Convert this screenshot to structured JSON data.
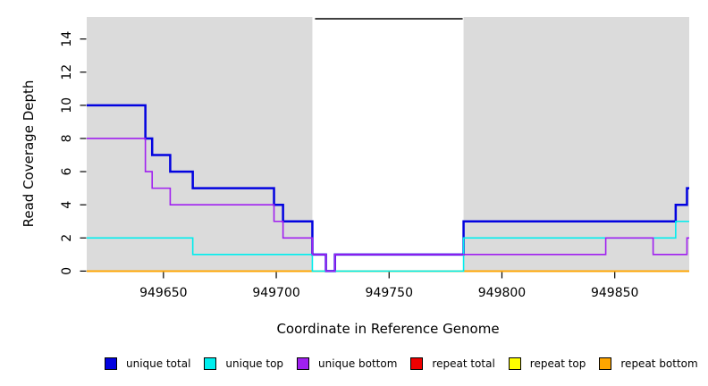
{
  "chart_data": {
    "type": "line",
    "subtype": "step-coverage-plot",
    "title": "",
    "xlabel": "Coordinate in Reference Genome",
    "ylabel": "Read Coverage Depth",
    "x_range": [
      949616,
      949883
    ],
    "y_range": [
      0,
      15.3
    ],
    "x_ticks": [
      949650,
      949700,
      949750,
      949800,
      949850
    ],
    "y_ticks": [
      0,
      2,
      4,
      6,
      8,
      10,
      12,
      14
    ],
    "grid": false,
    "plot_bg_color": "#DBDBDB",
    "axis_color": "#000000",
    "gap_region": {
      "start": 949716,
      "end": 949783,
      "fill": "#FFFFFF",
      "top_border_color": "#000000"
    },
    "legend_position": "bottom",
    "series": [
      {
        "name": "unique total",
        "color": "#0202E0",
        "width": 2.5,
        "steps": [
          [
            949616,
            10
          ],
          [
            949642,
            8
          ],
          [
            949645,
            7
          ],
          [
            949653,
            6
          ],
          [
            949663,
            5
          ],
          [
            949699,
            4
          ],
          [
            949703,
            3
          ],
          [
            949716,
            1
          ],
          [
            949722,
            0
          ],
          [
            949726,
            1
          ],
          [
            949783,
            3
          ],
          [
            949877,
            4
          ],
          [
            949882,
            5
          ]
        ]
      },
      {
        "name": "unique top",
        "color": "#00EEEE",
        "width": 1.6,
        "steps": [
          [
            949616,
            2
          ],
          [
            949663,
            1
          ],
          [
            949716,
            0
          ],
          [
            949783,
            2
          ],
          [
            949877,
            3
          ]
        ]
      },
      {
        "name": "unique bottom",
        "color": "#A020F0",
        "width": 1.6,
        "steps": [
          [
            949616,
            8
          ],
          [
            949642,
            6
          ],
          [
            949645,
            5
          ],
          [
            949653,
            4
          ],
          [
            949699,
            3
          ],
          [
            949703,
            2
          ],
          [
            949716,
            1
          ],
          [
            949722,
            0
          ],
          [
            949726,
            1
          ],
          [
            949846,
            2
          ],
          [
            949867,
            1
          ],
          [
            949882,
            2
          ]
        ]
      },
      {
        "name": "repeat total",
        "color": "#EE0000",
        "width": 1.6,
        "steps": [
          [
            949616,
            0
          ]
        ]
      },
      {
        "name": "repeat top",
        "color": "#FFFF00",
        "width": 1.6,
        "steps": [
          [
            949616,
            0
          ]
        ]
      },
      {
        "name": "repeat bottom",
        "color": "#FFA500",
        "width": 1.8,
        "steps": [
          [
            949616,
            0
          ]
        ]
      }
    ],
    "draw_order": [
      3,
      4,
      5,
      0,
      1,
      2
    ]
  }
}
